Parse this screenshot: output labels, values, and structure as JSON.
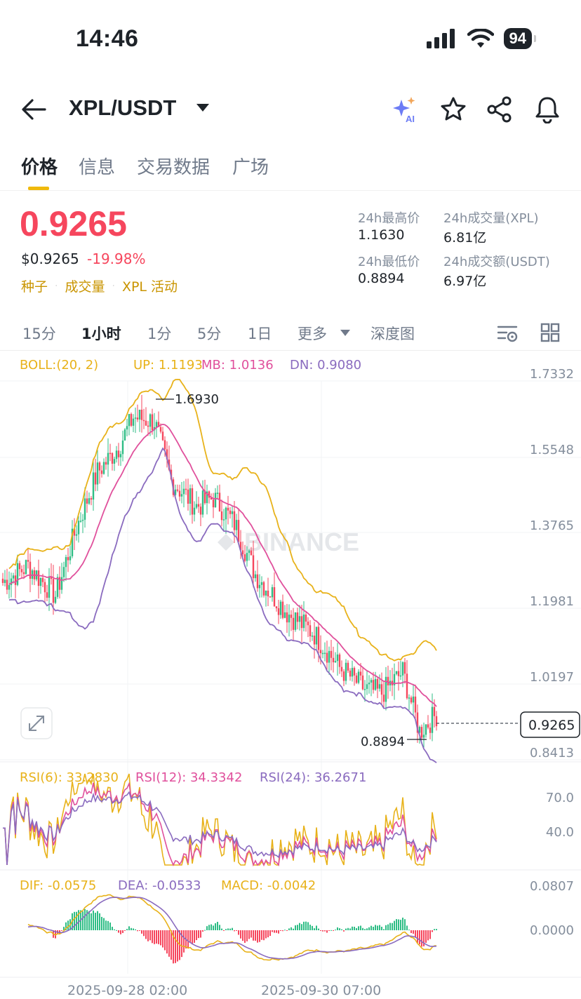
{
  "status_bar": {
    "time": "14:46",
    "battery": "94"
  },
  "header": {
    "pair": "XPL/USDT",
    "icons": [
      "back-arrow-icon",
      "ai-sparkle-icon",
      "star-icon",
      "share-icon",
      "bell-icon"
    ]
  },
  "tabs": [
    {
      "label": "价格",
      "active": true
    },
    {
      "label": "信息",
      "active": false
    },
    {
      "label": "交易数据",
      "active": false
    },
    {
      "label": "广场",
      "active": false
    }
  ],
  "ticker": {
    "last_price": "0.9265",
    "usd_price": "$0.9265",
    "change": "-19.98%",
    "tags": [
      "种子",
      "成交量",
      "XPL 活动"
    ],
    "high_label": "24h最高价",
    "high": "1.1630",
    "low_label": "24h最低价",
    "low": "0.8894",
    "vol_label": "24h成交量(XPL)",
    "vol": "6.81亿",
    "amount_label": "24h成交额(USDT)",
    "amount": "6.97亿"
  },
  "intervals": {
    "items": [
      "15分",
      "1小时",
      "1分",
      "5分",
      "1日",
      "更多",
      "深度图"
    ],
    "active": "1小时"
  },
  "colors": {
    "up": "#2ebd85",
    "down": "#f6465d",
    "boll_up": "#e8b21a",
    "boll_mb": "#e0509c",
    "boll_dn": "#8a6bbf",
    "accent": "#f0b90b"
  },
  "indicators": {
    "boll": {
      "name": "BOLL:(20, 2)",
      "up": "UP: 1.1193",
      "mb": "MB: 1.0136",
      "dn": "DN: 0.9080"
    },
    "rsi": {
      "r6": "RSI(6): 33.2830",
      "r12": "RSI(12): 34.3342",
      "r24": "RSI(24): 36.2671"
    },
    "macd": {
      "dif": "DIF: -0.0575",
      "dea": "DEA: -0.0533",
      "macd": "MACD: -0.0042"
    }
  },
  "chart_data": {
    "type": "candlestick",
    "price_axis_ticks": [
      "1.7332",
      "1.5548",
      "1.3765",
      "1.1981",
      "1.0197",
      "0.8413"
    ],
    "price_range": [
      0.8413,
      1.7332
    ],
    "high_marker": "1.6930",
    "low_marker": "0.8894",
    "current_price": "0.9265",
    "rsi_ticks": [
      "70.0",
      "40.0"
    ],
    "macd_ticks": [
      "0.0807",
      "0.0000"
    ],
    "x_ticks": [
      "2025-09-28 02:00",
      "2025-09-30 07:00"
    ],
    "watermark": "BINANCE"
  }
}
